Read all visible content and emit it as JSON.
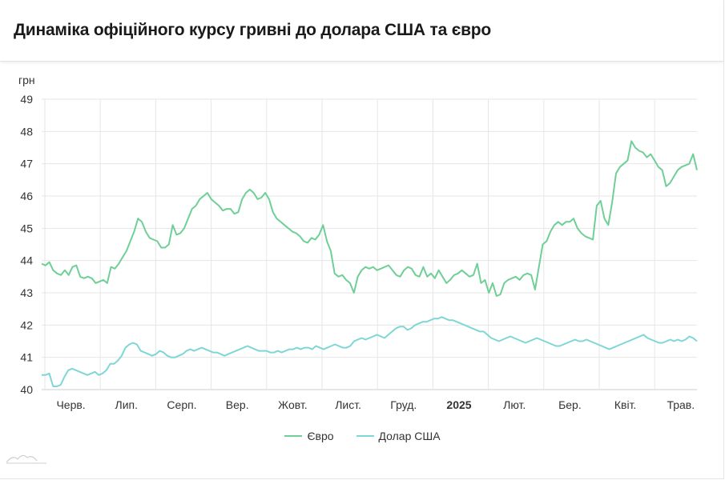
{
  "header": {
    "title": "Динаміка офіційного курсу гривні до долара США та євро"
  },
  "chart_data": {
    "type": "line",
    "ylabel": "грн",
    "ylim": [
      40,
      49
    ],
    "yticks": [
      "40",
      "41",
      "42",
      "43",
      "44",
      "45",
      "46",
      "47",
      "48",
      "49"
    ],
    "x_axis": {
      "months": [
        "Черв.",
        "Лип.",
        "Серп.",
        "Вер.",
        "Жовт.",
        "Лист.",
        "Груд.",
        "2025",
        "Лют.",
        "Бер.",
        "Квіт.",
        "Трав."
      ],
      "bold_label": "2025"
    },
    "grid": true,
    "legend_placement": "bottom-center",
    "series": [
      {
        "name": "Євро",
        "color": "#6fcf97",
        "values": [
          43.9,
          43.85,
          43.95,
          43.7,
          43.6,
          43.55,
          43.7,
          43.55,
          43.8,
          43.85,
          43.5,
          43.45,
          43.5,
          43.45,
          43.3,
          43.35,
          43.4,
          43.3,
          43.8,
          43.75,
          43.9,
          44.1,
          44.3,
          44.6,
          44.9,
          45.3,
          45.2,
          44.9,
          44.7,
          44.65,
          44.6,
          44.4,
          44.4,
          44.5,
          45.1,
          44.8,
          44.85,
          45.0,
          45.3,
          45.6,
          45.7,
          45.9,
          46.0,
          46.1,
          45.9,
          45.8,
          45.7,
          45.55,
          45.6,
          45.6,
          45.45,
          45.5,
          45.9,
          46.1,
          46.2,
          46.1,
          45.9,
          45.95,
          46.1,
          45.9,
          45.5,
          45.3,
          45.2,
          45.1,
          45.0,
          44.9,
          44.85,
          44.75,
          44.6,
          44.55,
          44.7,
          44.65,
          44.8,
          45.1,
          44.6,
          44.3,
          43.6,
          43.5,
          43.55,
          43.4,
          43.3,
          43.0,
          43.5,
          43.7,
          43.8,
          43.75,
          43.8,
          43.7,
          43.75,
          43.8,
          43.85,
          43.7,
          43.55,
          43.5,
          43.7,
          43.8,
          43.75,
          43.55,
          43.5,
          43.8,
          43.5,
          43.6,
          43.45,
          43.7,
          43.5,
          43.3,
          43.4,
          43.55,
          43.6,
          43.7,
          43.6,
          43.5,
          43.55,
          43.9,
          43.3,
          43.4,
          43.0,
          43.3,
          42.9,
          42.95,
          43.3,
          43.4,
          43.45,
          43.5,
          43.4,
          43.55,
          43.6,
          43.55,
          43.1,
          43.8,
          44.5,
          44.6,
          44.9,
          45.1,
          45.2,
          45.1,
          45.2,
          45.2,
          45.3,
          45.0,
          44.85,
          44.75,
          44.7,
          44.65,
          45.7,
          45.85,
          45.3,
          45.1,
          45.8,
          46.7,
          46.9,
          47.0,
          47.1,
          47.7,
          47.5,
          47.4,
          47.35,
          47.2,
          47.3,
          47.1,
          46.9,
          46.8,
          46.3,
          46.4,
          46.6,
          46.8,
          46.9,
          46.95,
          47.0,
          47.3,
          46.8
        ]
      },
      {
        "name": "Долар США",
        "color": "#7fd6d6",
        "values": [
          40.45,
          40.45,
          40.5,
          40.1,
          40.1,
          40.15,
          40.4,
          40.6,
          40.65,
          40.6,
          40.55,
          40.5,
          40.45,
          40.5,
          40.55,
          40.45,
          40.5,
          40.6,
          40.8,
          40.8,
          40.9,
          41.05,
          41.3,
          41.4,
          41.45,
          41.4,
          41.2,
          41.15,
          41.1,
          41.05,
          41.1,
          41.2,
          41.15,
          41.05,
          41.0,
          41.0,
          41.05,
          41.1,
          41.2,
          41.25,
          41.2,
          41.25,
          41.3,
          41.25,
          41.2,
          41.15,
          41.15,
          41.1,
          41.05,
          41.1,
          41.15,
          41.2,
          41.25,
          41.3,
          41.35,
          41.3,
          41.25,
          41.2,
          41.2,
          41.2,
          41.15,
          41.15,
          41.2,
          41.15,
          41.2,
          41.25,
          41.25,
          41.3,
          41.25,
          41.3,
          41.3,
          41.25,
          41.35,
          41.3,
          41.25,
          41.3,
          41.35,
          41.4,
          41.35,
          41.3,
          41.3,
          41.35,
          41.5,
          41.55,
          41.6,
          41.55,
          41.6,
          41.65,
          41.7,
          41.65,
          41.6,
          41.7,
          41.8,
          41.9,
          41.95,
          41.95,
          41.85,
          41.9,
          42.0,
          42.05,
          42.1,
          42.1,
          42.15,
          42.2,
          42.2,
          42.25,
          42.2,
          42.15,
          42.15,
          42.1,
          42.05,
          42.0,
          41.95,
          41.9,
          41.85,
          41.8,
          41.8,
          41.7,
          41.6,
          41.55,
          41.5,
          41.55,
          41.6,
          41.65,
          41.6,
          41.55,
          41.5,
          41.45,
          41.5,
          41.55,
          41.6,
          41.55,
          41.5,
          41.45,
          41.4,
          41.35,
          41.35,
          41.4,
          41.45,
          41.5,
          41.55,
          41.5,
          41.5,
          41.55,
          41.5,
          41.45,
          41.4,
          41.35,
          41.3,
          41.25,
          41.3,
          41.35,
          41.4,
          41.45,
          41.5,
          41.55,
          41.6,
          41.65,
          41.7,
          41.6,
          41.55,
          41.5,
          41.45,
          41.45,
          41.5,
          41.55,
          41.5,
          41.55,
          41.5,
          41.55,
          41.65,
          41.6,
          41.5
        ]
      }
    ]
  }
}
